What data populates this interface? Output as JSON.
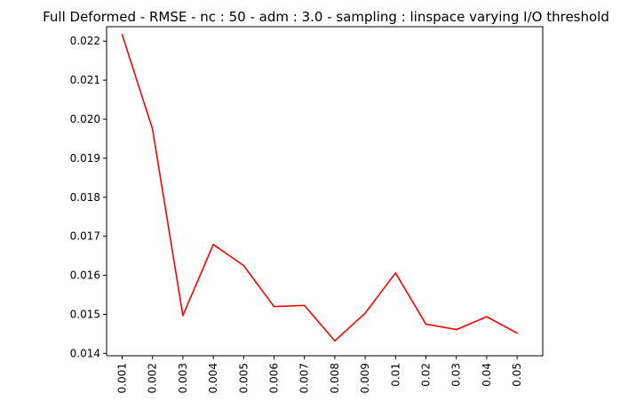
{
  "chart_data": {
    "type": "line",
    "title": "Full Deformed - RMSE - nc : 50 - adm : 3.0 - sampling : linspace varying I/O threshold",
    "xlabel": "",
    "ylabel": "",
    "categories": [
      "0.001",
      "0.002",
      "0.003",
      "0.004",
      "0.005",
      "0.006",
      "0.007",
      "0.008",
      "0.009",
      "0.01",
      "0.02",
      "0.03",
      "0.04",
      "0.05"
    ],
    "y_ticks": [
      "0.014",
      "0.015",
      "0.016",
      "0.017",
      "0.018",
      "0.019",
      "0.020",
      "0.021",
      "0.022"
    ],
    "ylim": [
      0.01394,
      0.02237
    ],
    "grid": false,
    "legend": "none",
    "series": [
      {
        "values": [
          0.02217,
          0.01975,
          0.01497,
          0.01679,
          0.01625,
          0.0152,
          0.01523,
          0.01432,
          0.01503,
          0.01606,
          0.01475,
          0.01461,
          0.01494,
          0.01452
        ],
        "color": "#ff0000"
      }
    ]
  }
}
